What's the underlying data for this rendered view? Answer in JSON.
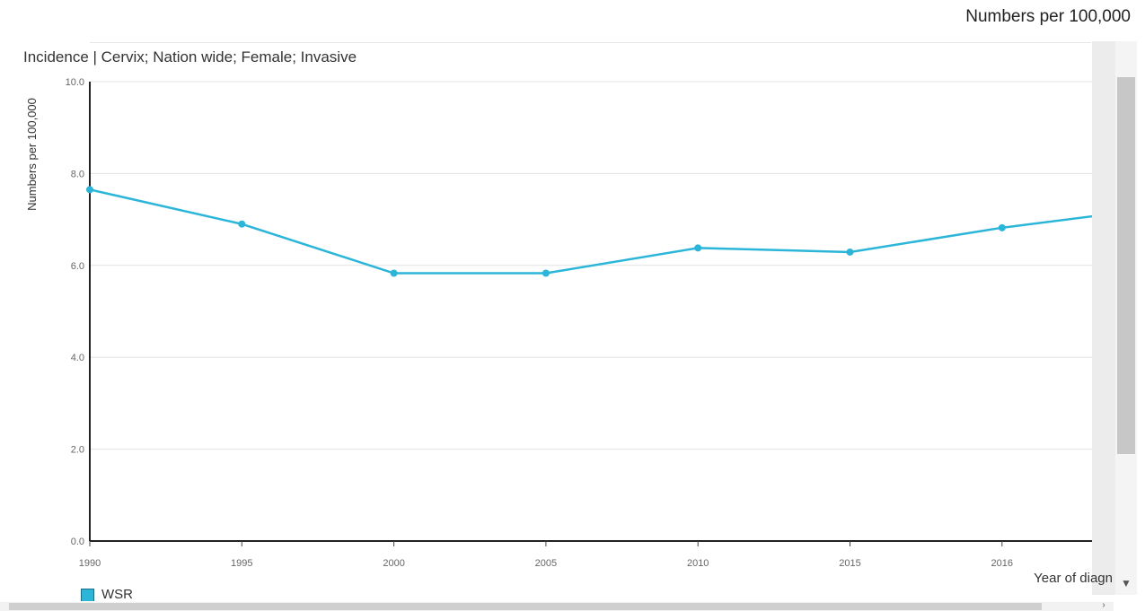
{
  "header": {
    "unit_label": "Numbers per 100,000"
  },
  "chart_data": {
    "type": "line",
    "title": "Incidence | Cervix; Nation wide; Female; Invasive",
    "xlabel": "Year of diagn",
    "ylabel": "Numbers per 100,000",
    "categories": [
      "1990",
      "1995",
      "2000",
      "2005",
      "2010",
      "2015",
      "2016"
    ],
    "series": [
      {
        "name": "WSR",
        "color": "#2bb5d8",
        "values": [
          7.65,
          6.9,
          5.83,
          5.83,
          6.38,
          6.29,
          6.82
        ],
        "trailing_value": 7.13
      }
    ],
    "ylim": [
      0,
      10
    ],
    "yticks": [
      "0.0",
      "2.0",
      "4.0",
      "6.0",
      "8.0",
      "10.0"
    ],
    "grid": true,
    "legend_position": "bottom-left"
  }
}
